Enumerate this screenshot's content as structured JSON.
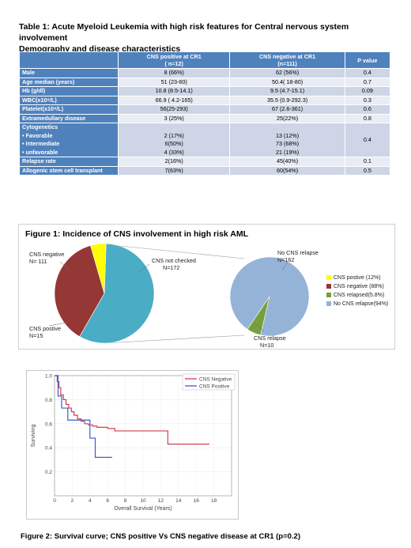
{
  "table1": {
    "title_line1": "Table 1:  Acute Myeloid Leukemia with high risk features for Central nervous system involvement",
    "title_line2": "Demography and disease characteristics",
    "headers": {
      "col0": "",
      "col1_line1": "CNS positive at CR1",
      "col1_line2": "( n=12)",
      "col2_line1": "CNS negative at CR1",
      "col2_line2": "(n=111)",
      "col3": "P value"
    },
    "rows": [
      {
        "label": "Male",
        "pos": "8 (66%)",
        "neg": "62 (56%)",
        "p": "0.4"
      },
      {
        "label": "Age median  (years)",
        "pos": "51 (23-60)",
        "neg": "50.4( 18-80)",
        "p": "0.7"
      },
      {
        "label": "Hb (g/dl)",
        "pos": "10.8 (8.5-14.1)",
        "neg": "9.5 (4.7-15.1)",
        "p": "0.09"
      },
      {
        "label": "WBC(x10⁹/L)",
        "pos": "66.9 ( 4.2-165)",
        "neg": "35.5 (0.9-292.3)",
        "p": "0.3"
      },
      {
        "label": "Platelet(x10⁹/L)",
        "pos": "56(25-293)",
        "neg": "67 (2.6-361)",
        "p": "0.6"
      },
      {
        "label": "Extramedullary disease",
        "pos": "3 (25%)",
        "neg": "25(22%)",
        "p": "0.8"
      }
    ],
    "cytogenetics": {
      "label": "Cytogenetics",
      "sub": [
        "• Favorable",
        "• Intermediate",
        "• unfavorable"
      ],
      "pos": [
        "2 (17%)",
        "6(50%)",
        "4 (33%)"
      ],
      "neg": [
        "13 (12%)",
        "73 (68%)",
        "21 (19%)"
      ],
      "p": "0.4"
    },
    "rows_after": [
      {
        "label": "Relapse rate",
        "pos": "2(16%)",
        "neg": "45(40%)",
        "p": "0.1"
      },
      {
        "label": "Allogenic stem cell transplant",
        "pos": "7(63%)",
        "neg": "60(54%)",
        "p": "0.5"
      }
    ]
  },
  "figure1": {
    "title": "Figure 1: Incidence of CNS involvement in high risk AML",
    "labels": {
      "cns_negative_l1": "CNS negative",
      "cns_negative_l2": "N= 111",
      "cns_not_checked_l1": "CNS not checked",
      "cns_not_checked_l2": "N=172",
      "cns_positive_l1": "CNS postive",
      "cns_positive_l2": "N=15",
      "no_cns_relapse_l1": "No CNS relapse",
      "no_cns_relapse_l2": "N=162",
      "cns_relapse_l1": "CNS relapse",
      "cns_relapse_l2": "N=10"
    },
    "legend": [
      {
        "label": "CNS postive (12%)",
        "color": "#ffff00"
      },
      {
        "label": "CNS negative (88%)",
        "color": "#953735"
      },
      {
        "label": "CNS relapsed(5.8%)",
        "color": "#77a03d"
      },
      {
        "label": "No CNS relapse(94%)",
        "color": "#95b3d7"
      }
    ],
    "colors": {
      "not_checked": "#4bacc6",
      "negative": "#953735",
      "positive": "#ffff00",
      "no_relapse": "#95b3d7",
      "relapse": "#77a03d"
    }
  },
  "chart_data": [
    {
      "type": "pie",
      "categories": [
        "CNS not checked",
        "CNS negative",
        "CNS postive"
      ],
      "values": [
        172,
        111,
        15
      ]
    },
    {
      "type": "pie",
      "categories": [
        "No CNS relapse",
        "CNS relapse"
      ],
      "values": [
        162,
        10
      ]
    },
    {
      "type": "line",
      "xlabel": "Overall Survival (Years)",
      "ylabel": "Surviving",
      "xlim": [
        0,
        20
      ],
      "ylim": [
        0,
        1.0
      ],
      "xticks": [
        "0",
        "2",
        "4",
        "6",
        "8",
        "10",
        "12",
        "14",
        "16",
        "18"
      ],
      "yticks": [
        "0.2",
        "0.4",
        "0.6",
        "0.8",
        "1.0"
      ],
      "legend": "top-right",
      "series": [
        {
          "name": "CNS Negative",
          "color": "#d04050",
          "x": [
            0,
            0.3,
            0.5,
            0.7,
            1.0,
            1.3,
            1.6,
            1.9,
            2.2,
            2.6,
            3.0,
            3.4,
            3.8,
            4.3,
            4.8,
            5.3,
            6.0,
            6.8,
            7.5,
            8.5,
            10.0,
            11.5,
            12.8,
            14.0,
            16.0,
            17.5
          ],
          "y": [
            1.0,
            0.95,
            0.9,
            0.84,
            0.8,
            0.76,
            0.73,
            0.7,
            0.67,
            0.64,
            0.62,
            0.6,
            0.59,
            0.58,
            0.57,
            0.57,
            0.56,
            0.54,
            0.54,
            0.54,
            0.54,
            0.54,
            0.43,
            0.43,
            0.43,
            0.43
          ]
        },
        {
          "name": "CNS Positive",
          "color": "#3a5fcd",
          "x": [
            0,
            0.4,
            0.8,
            1.5,
            2.5,
            4.0,
            4.6,
            5.0,
            6.5
          ],
          "y": [
            1.0,
            0.83,
            0.73,
            0.63,
            0.63,
            0.48,
            0.32,
            0.32,
            0.32
          ]
        }
      ]
    }
  ],
  "figure2": {
    "caption": "Figure  2: Survival curve; CNS positive Vs CNS negative  disease at CR1  (p=0.2)",
    "legend": [
      {
        "label": "CNS Negative",
        "color": "#d04050"
      },
      {
        "label": "CNS Positive",
        "color": "#3a5fcd"
      }
    ]
  }
}
